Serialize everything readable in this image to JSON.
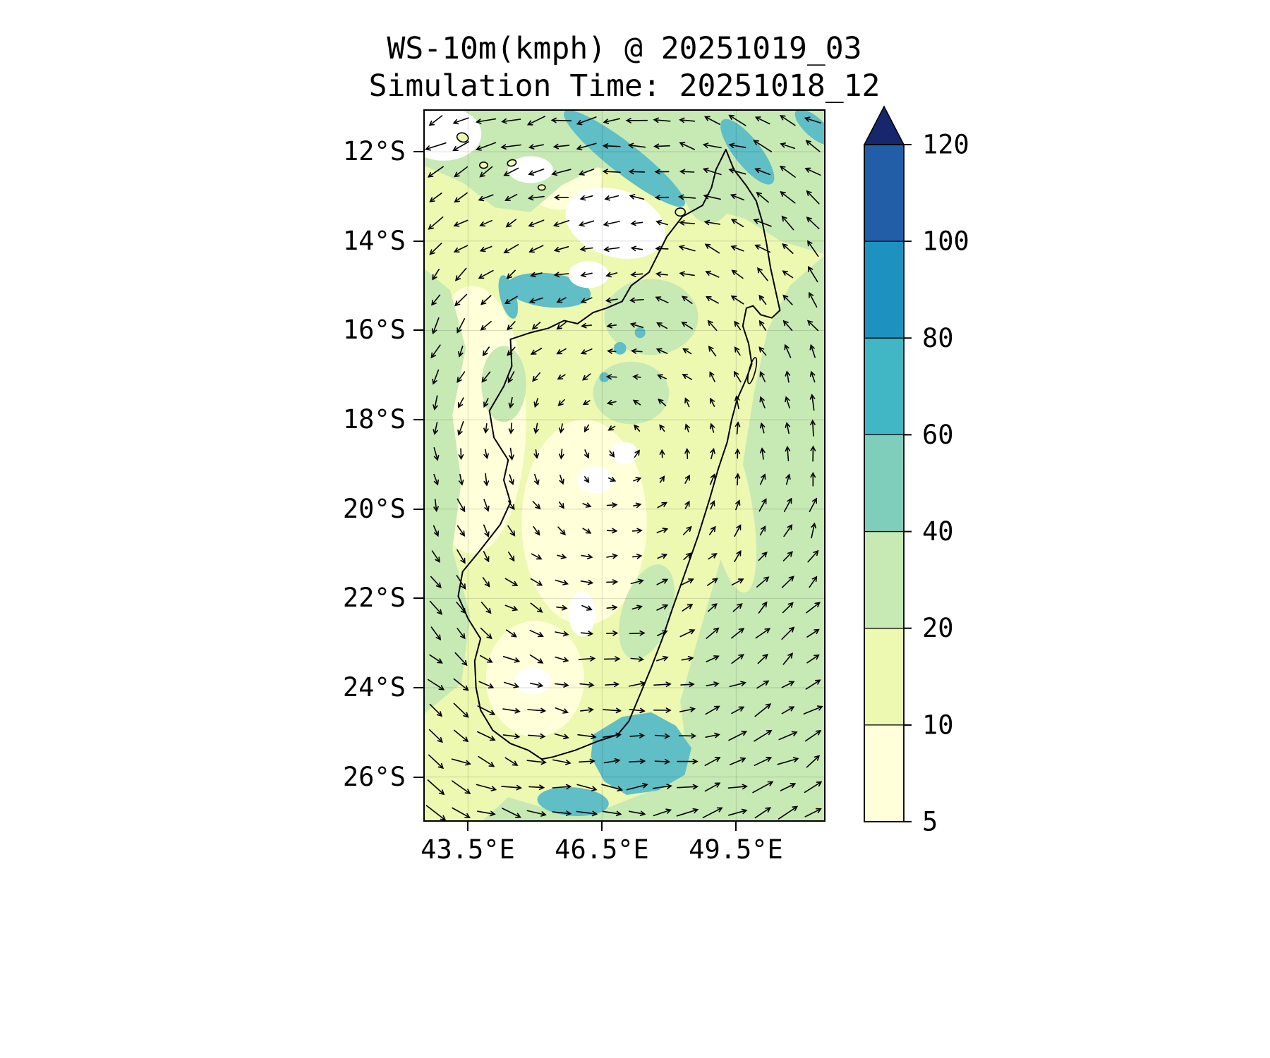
{
  "title": {
    "line1": "WS-10m(kmph) @ 20251019_03",
    "line2": "Simulation Time: 20251018_12"
  },
  "axes": {
    "x_ticks": [
      {
        "label": "43.5°E",
        "lon": 43.5
      },
      {
        "label": "46.5°E",
        "lon": 46.5
      },
      {
        "label": "49.5°E",
        "lon": 49.5
      }
    ],
    "y_ticks": [
      {
        "label": "12°S",
        "lat": -12
      },
      {
        "label": "14°S",
        "lat": -14
      },
      {
        "label": "16°S",
        "lat": -16
      },
      {
        "label": "18°S",
        "lat": -18
      },
      {
        "label": "20°S",
        "lat": -20
      },
      {
        "label": "22°S",
        "lat": -22
      },
      {
        "label": "24°S",
        "lat": -24
      },
      {
        "label": "26°S",
        "lat": -26
      }
    ]
  },
  "colorbar": {
    "tick_labels": [
      "5",
      "10",
      "20",
      "40",
      "60",
      "80",
      "100",
      "120"
    ],
    "levels": [
      5,
      10,
      20,
      40,
      60,
      80,
      100,
      120
    ],
    "segment_colors": [
      "#ffffd9",
      "#edf8b1",
      "#c7e9b4",
      "#7fcdbb",
      "#41b6c4",
      "#1d91c0",
      "#225ea8"
    ],
    "extend_color": "#16276e"
  },
  "chart_data": {
    "type": "heatmap",
    "title": "WS-10m(kmph) @ 20251019_03",
    "subtitle": "Simulation Time: 20251018_12",
    "variable": "WS-10m",
    "units": "kmph",
    "region": "Madagascar",
    "lon_range": [
      42.5,
      51.5
    ],
    "lat_range": [
      -27.0,
      -11.05
    ],
    "levels": [
      5,
      10,
      20,
      40,
      60,
      80,
      100,
      120
    ],
    "palette": {
      "base": "#edf8b1",
      "pale": "#ffffd9",
      "green": "#c7e9b4",
      "teal": "#5fbec6",
      "white": "#ffffff"
    },
    "regions": [
      {
        "shape": "ellipse",
        "color": "pale",
        "c": [
          43.6,
          -18.0
        ],
        "r": [
          1.2,
          3.0
        ],
        "rot": 0
      },
      {
        "shape": "ellipse",
        "color": "pale",
        "c": [
          46.1,
          -20.3
        ],
        "r": [
          1.4,
          2.3
        ],
        "rot": 0
      },
      {
        "shape": "ellipse",
        "color": "pale",
        "c": [
          45.0,
          -23.8
        ],
        "r": [
          1.1,
          1.3
        ],
        "rot": 0
      },
      {
        "shape": "ellipse",
        "color": "pale",
        "c": [
          45.6,
          -12.6
        ],
        "r": [
          0.9,
          0.7
        ],
        "rot": 0
      },
      {
        "shape": "polygon",
        "color": "green",
        "pts": [
          [
            42.5,
            -11.0
          ],
          [
            51.5,
            -11.0
          ],
          [
            51.5,
            -14.3
          ],
          [
            50.5,
            -14.0
          ],
          [
            49.7,
            -13.5
          ],
          [
            48.8,
            -13.25
          ],
          [
            47.9,
            -13.05
          ],
          [
            47.3,
            -12.55
          ],
          [
            46.4,
            -12.35
          ],
          [
            45.6,
            -12.75
          ],
          [
            44.9,
            -13.35
          ],
          [
            44.1,
            -13.25
          ],
          [
            43.4,
            -12.7
          ],
          [
            42.5,
            -12.3
          ]
        ]
      },
      {
        "shape": "polygon",
        "color": "green",
        "pts": [
          [
            51.5,
            -14.3
          ],
          [
            51.5,
            -27.0
          ],
          [
            43.8,
            -27.0
          ],
          [
            44.4,
            -26.45
          ],
          [
            45.4,
            -26.75
          ],
          [
            46.6,
            -26.7
          ],
          [
            47.6,
            -26.3
          ],
          [
            48.4,
            -25.5
          ],
          [
            48.25,
            -24.3
          ],
          [
            48.7,
            -22.7
          ],
          [
            49.25,
            -20.8
          ],
          [
            49.65,
            -19.0
          ],
          [
            49.9,
            -17.4
          ],
          [
            50.2,
            -16.0
          ],
          [
            50.7,
            -15.0
          ]
        ]
      },
      {
        "shape": "polygon",
        "color": "green",
        "pts": [
          [
            42.5,
            -14.6
          ],
          [
            43.1,
            -15.1
          ],
          [
            43.45,
            -16.4
          ],
          [
            43.15,
            -17.9
          ],
          [
            43.35,
            -19.4
          ],
          [
            43.15,
            -20.9
          ],
          [
            43.55,
            -22.4
          ],
          [
            43.35,
            -23.9
          ],
          [
            42.5,
            -24.6
          ]
        ]
      },
      {
        "shape": "ellipse",
        "color": "green",
        "c": [
          47.6,
          -15.7
        ],
        "r": [
          1.05,
          0.85
        ],
        "rot": 0
      },
      {
        "shape": "ellipse",
        "color": "green",
        "c": [
          47.15,
          -17.4
        ],
        "r": [
          0.85,
          0.7
        ],
        "rot": 0
      },
      {
        "shape": "ellipse",
        "color": "green",
        "c": [
          48.9,
          -12.85
        ],
        "r": [
          0.55,
          0.75
        ],
        "rot": 0
      },
      {
        "shape": "ellipse",
        "color": "green",
        "c": [
          44.3,
          -17.2
        ],
        "r": [
          0.5,
          0.85
        ],
        "rot": 0
      },
      {
        "shape": "ellipse",
        "color": "green",
        "c": [
          47.5,
          -22.3
        ],
        "r": [
          0.55,
          1.1
        ],
        "rot": 18
      },
      {
        "shape": "ellipse",
        "color": "base",
        "c": [
          49.35,
          -19.9
        ],
        "r": [
          0.5,
          2.0
        ],
        "rot": -10
      },
      {
        "shape": "ellipse",
        "color": "teal",
        "c": [
          47.0,
          -12.15
        ],
        "r": [
          1.7,
          0.34
        ],
        "rot": 38
      },
      {
        "shape": "ellipse",
        "color": "teal",
        "c": [
          49.75,
          -12.0
        ],
        "r": [
          0.9,
          0.3
        ],
        "rot": 52
      },
      {
        "shape": "ellipse",
        "color": "teal",
        "c": [
          51.25,
          -11.45
        ],
        "r": [
          0.55,
          0.22
        ],
        "rot": 42
      },
      {
        "shape": "ellipse",
        "color": "teal",
        "c": [
          45.3,
          -15.1
        ],
        "r": [
          0.95,
          0.38
        ],
        "rot": 6
      },
      {
        "shape": "ellipse",
        "color": "teal",
        "c": [
          44.4,
          -15.25
        ],
        "r": [
          0.18,
          0.5
        ],
        "rot": -15
      },
      {
        "shape": "polygon",
        "color": "teal",
        "pts": [
          [
            46.3,
            -25.05
          ],
          [
            46.95,
            -24.65
          ],
          [
            47.6,
            -24.55
          ],
          [
            48.15,
            -24.85
          ],
          [
            48.5,
            -25.35
          ],
          [
            48.35,
            -25.95
          ],
          [
            47.75,
            -26.3
          ],
          [
            47.05,
            -26.4
          ],
          [
            46.55,
            -26.1
          ],
          [
            46.25,
            -25.55
          ]
        ]
      },
      {
        "shape": "ellipse",
        "color": "teal",
        "c": [
          45.85,
          -26.55
        ],
        "r": [
          0.8,
          0.32
        ],
        "rot": 4
      },
      {
        "shape": "ellipse",
        "color": "teal",
        "c": [
          46.9,
          -16.4
        ],
        "r": [
          0.14,
          0.14
        ],
        "rot": 0
      },
      {
        "shape": "ellipse",
        "color": "teal",
        "c": [
          46.55,
          -17.05
        ],
        "r": [
          0.11,
          0.11
        ],
        "rot": 0
      },
      {
        "shape": "ellipse",
        "color": "teal",
        "c": [
          47.35,
          -16.05
        ],
        "r": [
          0.12,
          0.12
        ],
        "rot": 0
      },
      {
        "shape": "ellipse",
        "color": "white",
        "c": [
          46.8,
          -13.6
        ],
        "r": [
          1.15,
          0.75
        ],
        "rot": 18
      },
      {
        "shape": "ellipse",
        "color": "white",
        "c": [
          42.95,
          -11.6
        ],
        "r": [
          0.85,
          0.6
        ],
        "rot": 0
      },
      {
        "shape": "ellipse",
        "color": "white",
        "c": [
          44.9,
          -12.4
        ],
        "r": [
          0.5,
          0.3
        ],
        "rot": 0
      },
      {
        "shape": "ellipse",
        "color": "white",
        "c": [
          46.2,
          -14.75
        ],
        "r": [
          0.45,
          0.3
        ],
        "rot": 0
      },
      {
        "shape": "ellipse",
        "color": "white",
        "c": [
          46.35,
          -19.35
        ],
        "r": [
          0.4,
          0.3
        ],
        "rot": 0
      },
      {
        "shape": "ellipse",
        "color": "white",
        "c": [
          47.0,
          -18.75
        ],
        "r": [
          0.3,
          0.25
        ],
        "rot": 0
      },
      {
        "shape": "ellipse",
        "color": "white",
        "c": [
          46.05,
          -22.35
        ],
        "r": [
          0.3,
          0.5
        ],
        "rot": 0
      },
      {
        "shape": "ellipse",
        "color": "white",
        "c": [
          44.95,
          -23.85
        ],
        "r": [
          0.4,
          0.3
        ],
        "rot": 0
      }
    ],
    "coastline": [
      [
        49.27,
        -11.95
      ],
      [
        49.45,
        -12.4
      ],
      [
        49.72,
        -12.75
      ],
      [
        49.95,
        -13.1
      ],
      [
        50.08,
        -13.55
      ],
      [
        50.18,
        -14.05
      ],
      [
        50.27,
        -14.6
      ],
      [
        50.38,
        -15.1
      ],
      [
        50.48,
        -15.55
      ],
      [
        50.3,
        -15.72
      ],
      [
        50.05,
        -15.65
      ],
      [
        49.88,
        -15.45
      ],
      [
        49.73,
        -15.5
      ],
      [
        49.65,
        -15.9
      ],
      [
        49.78,
        -16.3
      ],
      [
        49.85,
        -16.75
      ],
      [
        49.72,
        -17.1
      ],
      [
        49.52,
        -17.55
      ],
      [
        49.4,
        -18.0
      ],
      [
        49.3,
        -18.5
      ],
      [
        49.1,
        -19.1
      ],
      [
        48.9,
        -19.8
      ],
      [
        48.65,
        -20.6
      ],
      [
        48.35,
        -21.45
      ],
      [
        48.05,
        -22.3
      ],
      [
        47.85,
        -22.9
      ],
      [
        47.6,
        -23.55
      ],
      [
        47.35,
        -24.15
      ],
      [
        47.1,
        -24.75
      ],
      [
        46.85,
        -25.05
      ],
      [
        46.4,
        -25.2
      ],
      [
        45.9,
        -25.4
      ],
      [
        45.4,
        -25.55
      ],
      [
        45.15,
        -25.6
      ],
      [
        44.85,
        -25.4
      ],
      [
        44.45,
        -25.25
      ],
      [
        44.05,
        -24.95
      ],
      [
        43.78,
        -24.5
      ],
      [
        43.68,
        -24.0
      ],
      [
        43.65,
        -23.4
      ],
      [
        43.78,
        -22.9
      ],
      [
        43.5,
        -22.45
      ],
      [
        43.28,
        -21.95
      ],
      [
        43.38,
        -21.4
      ],
      [
        43.75,
        -20.95
      ],
      [
        44.22,
        -20.35
      ],
      [
        44.45,
        -19.85
      ],
      [
        44.3,
        -19.35
      ],
      [
        44.4,
        -18.9
      ],
      [
        44.08,
        -18.4
      ],
      [
        43.98,
        -17.8
      ],
      [
        44.3,
        -17.25
      ],
      [
        44.48,
        -16.8
      ],
      [
        44.45,
        -16.2
      ],
      [
        44.9,
        -16.05
      ],
      [
        45.3,
        -15.95
      ],
      [
        45.65,
        -15.78
      ],
      [
        45.95,
        -15.85
      ],
      [
        46.3,
        -15.6
      ],
      [
        46.6,
        -15.5
      ],
      [
        46.95,
        -15.35
      ],
      [
        47.15,
        -15.0
      ],
      [
        47.55,
        -14.7
      ],
      [
        47.95,
        -13.9
      ],
      [
        48.3,
        -13.45
      ],
      [
        48.75,
        -13.2
      ],
      [
        48.95,
        -12.8
      ],
      [
        49.05,
        -12.4
      ]
    ],
    "islands": [
      {
        "c": [
          43.38,
          -11.68
        ],
        "r": [
          0.13,
          0.1
        ],
        "rot": 20
      },
      {
        "c": [
          43.85,
          -12.3
        ],
        "r": [
          0.09,
          0.07
        ],
        "rot": 0
      },
      {
        "c": [
          44.48,
          -12.25
        ],
        "r": [
          0.1,
          0.07
        ],
        "rot": -15
      },
      {
        "c": [
          45.15,
          -12.8
        ],
        "r": [
          0.08,
          0.06
        ],
        "rot": 0
      },
      {
        "c": [
          48.25,
          -13.35
        ],
        "r": [
          0.11,
          0.09
        ],
        "rot": 0
      },
      {
        "c": [
          49.86,
          -16.9
        ],
        "r": [
          0.07,
          0.3
        ],
        "rot": 14
      }
    ],
    "wind": {
      "grid": {
        "lon0": 42.78,
        "lon1": 51.22,
        "nx": 16,
        "lat0": -11.3,
        "lat1": -26.8,
        "ny": 28
      },
      "center": [
        46.9,
        -18.6
      ],
      "len_base": 9,
      "len_scale": 2.1,
      "color": "#000000"
    }
  }
}
